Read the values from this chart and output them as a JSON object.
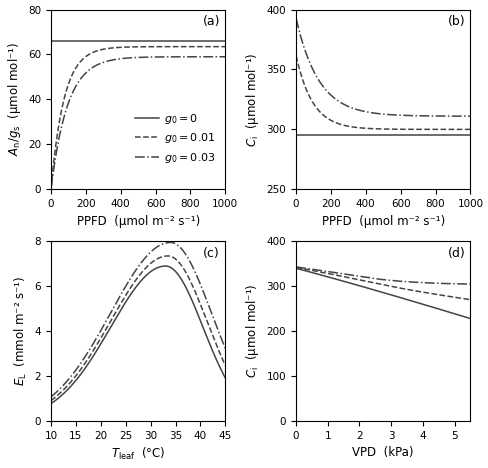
{
  "panel_labels": [
    "(a)",
    "(b)",
    "(c)",
    "(d)"
  ],
  "line_styles": [
    "-",
    "--",
    "-."
  ],
  "line_colors": [
    "#444444",
    "#444444",
    "#444444"
  ],
  "legend_labels": [
    "$g_0 = 0$",
    "$g_0 = 0.01$",
    "$g_0 = 0.03$"
  ],
  "panel_a": {
    "xlabel": "PPFD  (μmol m⁻² s⁻¹)",
    "ylabel": "$A_\\mathrm{n}/g_\\mathrm{s}$  (μmol mol⁻¹)",
    "xlim": [
      0,
      1000
    ],
    "ylim": [
      0,
      80
    ],
    "yticks": [
      0,
      20,
      40,
      60,
      80
    ],
    "xticks": [
      0,
      200,
      400,
      600,
      800,
      1000
    ]
  },
  "panel_b": {
    "xlabel": "PPFD  (μmol m⁻² s⁻¹)",
    "ylabel": "$C_\\mathrm{i}$  (μmol mol⁻¹)",
    "xlim": [
      0,
      1000
    ],
    "ylim": [
      250,
      400
    ],
    "yticks": [
      250,
      300,
      350,
      400
    ],
    "xticks": [
      0,
      200,
      400,
      600,
      800,
      1000
    ]
  },
  "panel_c": {
    "xlabel": "$T_\\mathrm{leaf}$  (°C)",
    "ylabel": "$E_\\mathrm{L}$  (mmol m⁻² s⁻¹)",
    "xlim": [
      10,
      45
    ],
    "ylim": [
      0,
      8
    ],
    "yticks": [
      0,
      2,
      4,
      6,
      8
    ],
    "xticks": [
      10,
      15,
      20,
      25,
      30,
      35,
      40,
      45
    ]
  },
  "panel_d": {
    "xlabel": "VPD  (kPa)",
    "ylabel": "$C_\\mathrm{i}$  (μmol mol⁻¹)",
    "xlim": [
      0,
      5.5
    ],
    "ylim": [
      0,
      400
    ],
    "yticks": [
      0,
      100,
      200,
      300,
      400
    ],
    "xticks": [
      0,
      1,
      2,
      3,
      4,
      5
    ]
  },
  "background": "#ffffff",
  "tick_fontsize": 7.5,
  "label_fontsize": 8.5,
  "legend_fontsize": 8,
  "panel_label_fontsize": 9
}
